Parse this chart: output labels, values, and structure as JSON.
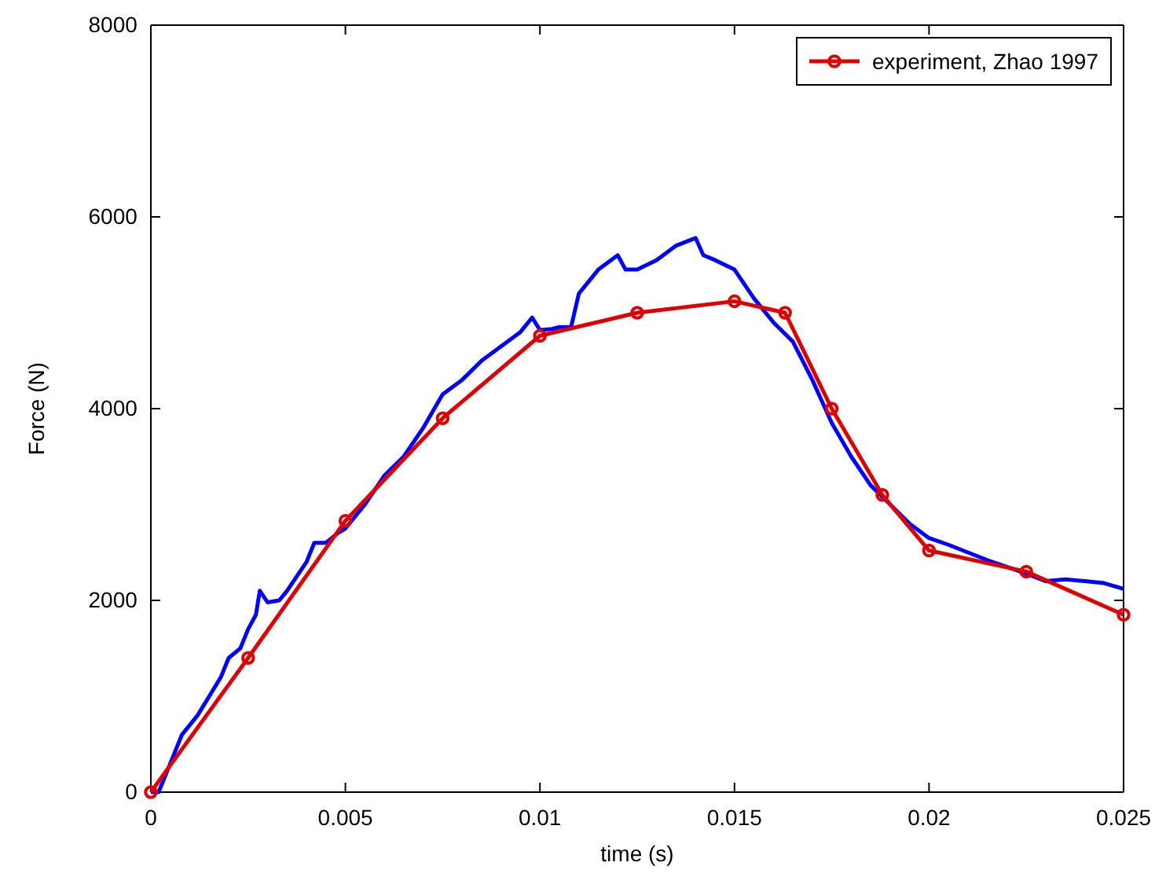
{
  "chart_data": {
    "type": "line",
    "xlabel": "time (s)",
    "ylabel": "Force (N)",
    "xlim": [
      0,
      0.025
    ],
    "ylim": [
      0,
      8000
    ],
    "xticks": [
      0,
      0.005,
      0.01,
      0.015,
      0.02,
      0.025
    ],
    "yticks": [
      0,
      2000,
      4000,
      6000,
      8000
    ],
    "grid": false,
    "legend": "top right",
    "series": [
      {
        "color": "#0000ff",
        "marker": "none",
        "x": [
          0,
          0.0002,
          0.0005,
          0.0008,
          0.0012,
          0.0015,
          0.0018,
          0.002,
          0.0023,
          0.0025,
          0.0027,
          0.0028,
          0.003,
          0.0033,
          0.0035,
          0.004,
          0.0042,
          0.0045,
          0.0048,
          0.005,
          0.0055,
          0.006,
          0.0065,
          0.007,
          0.0075,
          0.008,
          0.0085,
          0.009,
          0.0095,
          0.0098,
          0.01,
          0.0103,
          0.0105,
          0.0108,
          0.011,
          0.0115,
          0.012,
          0.0122,
          0.0125,
          0.013,
          0.0135,
          0.014,
          0.0142,
          0.0145,
          0.015,
          0.0155,
          0.016,
          0.0165,
          0.017,
          0.0175,
          0.018,
          0.0185,
          0.019,
          0.0195,
          0.02,
          0.0205,
          0.021,
          0.0215,
          0.022,
          0.0225,
          0.023,
          0.0235,
          0.024,
          0.0245,
          0.025
        ],
        "values": [
          0,
          0,
          300,
          600,
          800,
          1000,
          1200,
          1400,
          1500,
          1700,
          1850,
          2100,
          1980,
          2000,
          2100,
          2400,
          2600,
          2600,
          2700,
          2750,
          3000,
          3300,
          3500,
          3800,
          4150,
          4300,
          4500,
          4650,
          4800,
          4950,
          4820,
          4830,
          4850,
          4850,
          5200,
          5450,
          5600,
          5450,
          5450,
          5550,
          5700,
          5780,
          5600,
          5550,
          5450,
          5150,
          4900,
          4700,
          4300,
          3850,
          3500,
          3200,
          3000,
          2800,
          2650,
          2580,
          2500,
          2420,
          2350,
          2280,
          2200,
          2220,
          2200,
          2180,
          2120
        ]
      },
      {
        "name": "experiment, Zhao 1997",
        "color": "#dd0000",
        "marker": "circle",
        "x": [
          0,
          0.0025,
          0.005,
          0.0075,
          0.01,
          0.0125,
          0.015,
          0.0163,
          0.0175,
          0.0188,
          0.02,
          0.0225,
          0.025
        ],
        "values": [
          0,
          1400,
          2830,
          3900,
          4760,
          5000,
          5120,
          5000,
          4000,
          3100,
          2520,
          2300,
          1850
        ]
      }
    ]
  }
}
